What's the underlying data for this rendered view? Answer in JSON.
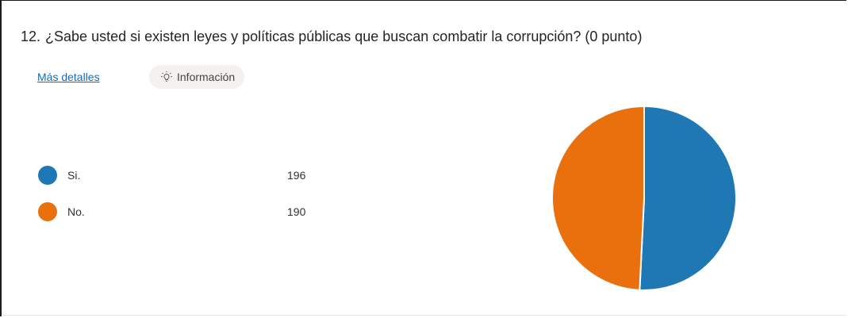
{
  "question": {
    "number": "12.",
    "text": "¿Sabe usted si existen leyes y políticas públicas que buscan combatir la corrupción? (0 punto)"
  },
  "links": {
    "details_label": "Más detalles",
    "info_label": "Información",
    "info_icon": "lightbulb-icon"
  },
  "chart_data": {
    "type": "pie",
    "categories": [
      "Si.",
      "No."
    ],
    "values": [
      196,
      190
    ],
    "colors": [
      "#1f78b4",
      "#ea700d"
    ],
    "legend_position": "left"
  }
}
